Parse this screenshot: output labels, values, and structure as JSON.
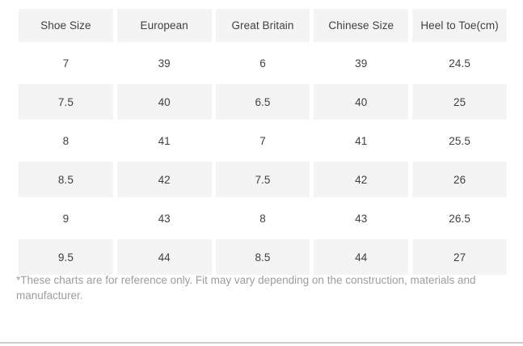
{
  "table": {
    "headers": [
      "Shoe Size",
      "European",
      "Great Britain",
      "Chinese Size",
      "Heel to Toe(cm)"
    ],
    "rows": [
      [
        "7",
        "39",
        "6",
        "39",
        "24.5"
      ],
      [
        "7.5",
        "40",
        "6.5",
        "40",
        "25"
      ],
      [
        "8",
        "41",
        "7",
        "41",
        "25.5"
      ],
      [
        "8.5",
        "42",
        "7.5",
        "42",
        "26"
      ],
      [
        "9",
        "43",
        "8",
        "43",
        "26.5"
      ],
      [
        "9.5",
        "44",
        "8.5",
        "44",
        "27"
      ]
    ]
  },
  "footnote": "*These charts are for reference only. Fit may vary depending on the construction, materials and manufacturer.",
  "colors": {
    "cell_background": "#f4f4f5",
    "table_text": "#404040",
    "footnote_text": "#9b9da0",
    "bottom_divider": "#cccccc",
    "page_background": "#ffffff"
  }
}
